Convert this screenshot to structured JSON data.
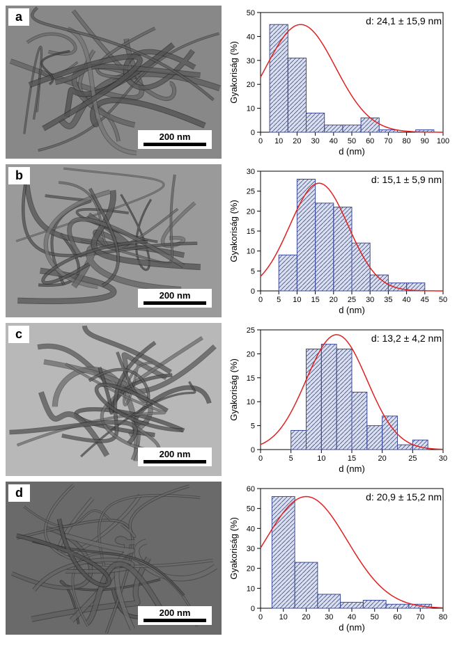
{
  "panels": [
    {
      "label": "a",
      "scale_text": "200 nm",
      "annotation": "d: 24,1 ± 15,9  nm",
      "chart": {
        "type": "histogram",
        "xlabel": "d (nm)",
        "ylabel": "Gyakoriság (%)",
        "xlim": [
          0,
          100
        ],
        "ylim": [
          0,
          50
        ],
        "xtick_step": 10,
        "ytick_step": 10,
        "bin_width": 10,
        "bins_start": 5,
        "bars": [
          45,
          31,
          8,
          3,
          3,
          6,
          1,
          0,
          1
        ],
        "bar_color": "#6a7ec5",
        "bar_stroke": "#3a4a9a",
        "curve_color": "#e02020",
        "curve_peak_x": 22,
        "curve_peak_y": 45,
        "curve_sigma": 19,
        "background_color": "#ffffff",
        "axis_color": "#000000",
        "label_fontsize": 13,
        "tick_fontsize": 11
      },
      "tem_bg": "#888888"
    },
    {
      "label": "b",
      "scale_text": "200 nm",
      "annotation": "d: 15,1 ±  5,9  nm",
      "chart": {
        "type": "histogram",
        "xlabel": "d (nm)",
        "ylabel": "Gyakoriság (%)",
        "xlim": [
          0,
          50
        ],
        "ylim": [
          0,
          30
        ],
        "xtick_step": 5,
        "ytick_step": 5,
        "bin_width": 5,
        "bins_start": 5,
        "bars": [
          9,
          28,
          22,
          21,
          12,
          4,
          2,
          2
        ],
        "bar_color": "#6a7ec5",
        "bar_stroke": "#3a4a9a",
        "curve_color": "#e02020",
        "curve_peak_x": 16,
        "curve_peak_y": 27,
        "curve_sigma": 8,
        "background_color": "#ffffff",
        "axis_color": "#000000",
        "label_fontsize": 13,
        "tick_fontsize": 11
      },
      "tem_bg": "#9a9a9a"
    },
    {
      "label": "c",
      "scale_text": "200 nm",
      "annotation": "d: 13,2 ±  4,2  nm",
      "chart": {
        "type": "histogram",
        "xlabel": "d (nm)",
        "ylabel": "Gyakoriság (%)",
        "xlim": [
          0,
          30
        ],
        "ylim": [
          0,
          25
        ],
        "xtick_step": 5,
        "ytick_step": 5,
        "bin_width": 2.5,
        "bins_start": 5,
        "bars": [
          4,
          21,
          22,
          21,
          12,
          5,
          7,
          1,
          2
        ],
        "bar_color": "#6a7ec5",
        "bar_stroke": "#3a4a9a",
        "curve_color": "#e02020",
        "curve_peak_x": 12.5,
        "curve_peak_y": 24,
        "curve_sigma": 5,
        "background_color": "#ffffff",
        "axis_color": "#000000",
        "label_fontsize": 13,
        "tick_fontsize": 11
      },
      "tem_bg": "#b8b8b8"
    },
    {
      "label": "d",
      "scale_text": "200 nm",
      "annotation": "d: 20,9 ±  15,2  nm",
      "chart": {
        "type": "histogram",
        "xlabel": "d (nm)",
        "ylabel": "Gyakoriság (%)",
        "xlim": [
          0,
          80
        ],
        "ylim": [
          0,
          60
        ],
        "xtick_step": 10,
        "ytick_step": 10,
        "bin_width": 10,
        "bins_start": 5,
        "bars": [
          56,
          23,
          7,
          3,
          4,
          2,
          2
        ],
        "bar_color": "#6a7ec5",
        "bar_stroke": "#3a4a9a",
        "curve_color": "#e02020",
        "curve_peak_x": 20,
        "curve_peak_y": 56,
        "curve_sigma": 18,
        "background_color": "#ffffff",
        "axis_color": "#000000",
        "label_fontsize": 13,
        "tick_fontsize": 11
      },
      "tem_bg": "#6a6a6a"
    }
  ]
}
